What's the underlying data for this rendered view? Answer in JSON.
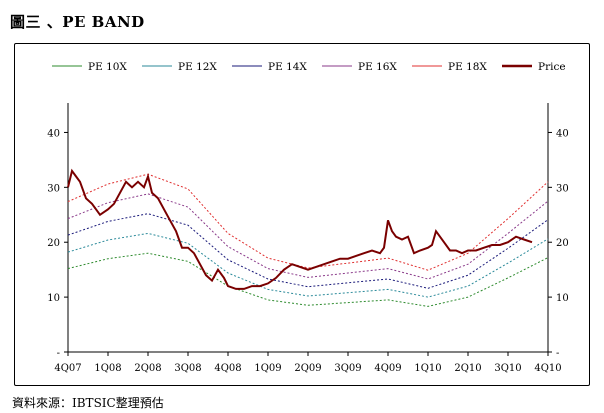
{
  "title": "圖三 、PE BAND",
  "source": "資料來源：IBTSIC整理預估",
  "chart_data": {
    "type": "line",
    "x_ticks": [
      "4Q07",
      "1Q08",
      "2Q08",
      "3Q08",
      "4Q08",
      "1Q09",
      "2Q09",
      "3Q09",
      "4Q09",
      "1Q10",
      "2Q10",
      "3Q10",
      "4Q10"
    ],
    "y_ticks": [
      "-",
      "10",
      "20",
      "30",
      "40"
    ],
    "ylim": [
      0,
      45
    ],
    "grid": false,
    "legend_position": "top",
    "legend": [
      "PE  10X",
      "PE  12X",
      "PE  14X",
      "PE  16X",
      "PE  18X",
      "Price"
    ],
    "eps_quarter_index": [
      0,
      1,
      2,
      3,
      4,
      5,
      6,
      7,
      8,
      9,
      10,
      11,
      12
    ],
    "series": [
      {
        "name": "PE  10X",
        "color": "#2e8b2e",
        "dashed": true,
        "values": [
          15.2,
          17.0,
          18.0,
          16.5,
          12.0,
          9.5,
          8.5,
          9.0,
          9.5,
          8.3,
          10.0,
          13.5,
          17.2
        ]
      },
      {
        "name": "PE  12X",
        "color": "#2b8a9a",
        "dashed": true,
        "values": [
          18.2,
          20.4,
          21.6,
          19.8,
          14.4,
          11.4,
          10.2,
          10.8,
          11.4,
          10.0,
          12.0,
          16.2,
          20.6
        ]
      },
      {
        "name": "PE  14X",
        "color": "#1a1a7a",
        "dashed": true,
        "values": [
          21.3,
          23.8,
          25.2,
          23.1,
          16.8,
          13.3,
          11.9,
          12.6,
          13.3,
          11.6,
          14.0,
          18.9,
          24.1
        ]
      },
      {
        "name": "PE  16X",
        "color": "#8a3a8a",
        "dashed": true,
        "values": [
          24.3,
          27.2,
          28.8,
          26.4,
          19.2,
          15.2,
          13.6,
          14.4,
          15.2,
          13.3,
          16.0,
          21.6,
          27.5
        ]
      },
      {
        "name": "PE  18X",
        "color": "#e03030",
        "dashed": true,
        "values": [
          27.4,
          30.6,
          32.4,
          29.7,
          21.6,
          17.1,
          15.3,
          16.2,
          17.1,
          14.9,
          18.0,
          24.3,
          31.0
        ]
      }
    ],
    "price": {
      "name": "Price",
      "color": "#7a0000",
      "x": [
        0,
        0.1,
        0.2,
        0.3,
        0.45,
        0.6,
        0.8,
        1.0,
        1.15,
        1.3,
        1.45,
        1.6,
        1.75,
        1.9,
        2.0,
        2.1,
        2.25,
        2.4,
        2.55,
        2.7,
        2.85,
        3.0,
        3.15,
        3.3,
        3.45,
        3.6,
        3.75,
        3.9,
        4.0,
        4.2,
        4.4,
        4.6,
        4.8,
        5.0,
        5.2,
        5.4,
        5.6,
        5.8,
        6.0,
        6.2,
        6.4,
        6.6,
        6.8,
        7.0,
        7.2,
        7.4,
        7.6,
        7.8,
        7.9,
        8.0,
        8.1,
        8.2,
        8.35,
        8.5,
        8.65,
        8.8,
        9.0,
        9.1,
        9.2,
        9.3,
        9.4,
        9.55,
        9.7,
        9.85,
        10.0,
        10.2,
        10.4,
        10.6,
        10.8,
        11.0,
        11.2,
        11.4,
        11.6
      ],
      "values": [
        30,
        33,
        32,
        31,
        28,
        27,
        25,
        26,
        27,
        29,
        31,
        30,
        31,
        30,
        32,
        29,
        28,
        26,
        24,
        22,
        19,
        19,
        18,
        16,
        14,
        13,
        15,
        13.5,
        12,
        11.5,
        11.5,
        12,
        12,
        12.5,
        13.5,
        15,
        16,
        15.5,
        15,
        15.5,
        16,
        16.5,
        17,
        17,
        17.5,
        18,
        18.5,
        18,
        19,
        24,
        22,
        21,
        20.5,
        21,
        18,
        18.5,
        19,
        19.5,
        22,
        21,
        20,
        18.5,
        18.5,
        18,
        18.5,
        18.5,
        19,
        19.5,
        19.5,
        20,
        21,
        20.5,
        20
      ]
    }
  }
}
